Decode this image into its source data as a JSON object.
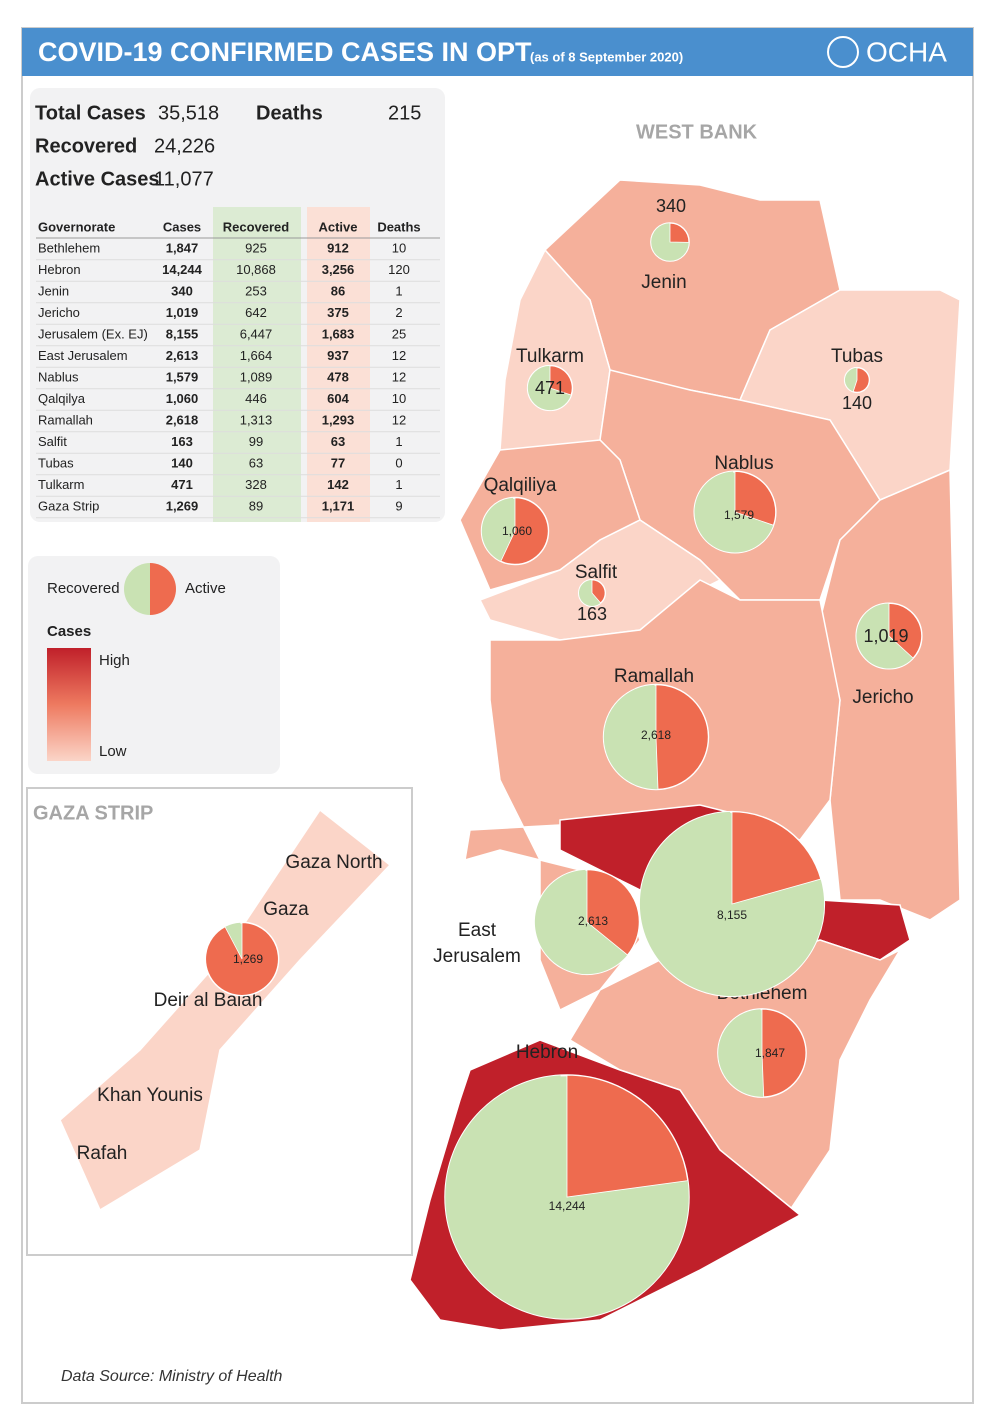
{
  "header": {
    "title": "COVID-19 CONFIRMED CASES IN OPT",
    "subtitle": "(as of 8 September 2020)",
    "logo": "OCHA"
  },
  "summary": [
    {
      "label": "Total Cases",
      "value": "35,518"
    },
    {
      "label": "Deaths",
      "value": "215"
    },
    {
      "label": "Recovered",
      "value": "24,226"
    },
    {
      "label": "Active Cases",
      "value": "11,077"
    }
  ],
  "table": {
    "columns": [
      "Governorate",
      "Cases",
      "Recovered",
      "Active",
      "Deaths"
    ],
    "rows": [
      [
        "Bethlehem",
        "1,847",
        "925",
        "912",
        "10"
      ],
      [
        "Hebron",
        "14,244",
        "10,868",
        "3,256",
        "120"
      ],
      [
        "Jenin",
        "340",
        "253",
        "86",
        "1"
      ],
      [
        "Jericho",
        "1,019",
        "642",
        "375",
        "2"
      ],
      [
        "Jerusalem (Ex. EJ)",
        "8,155",
        "6,447",
        "1,683",
        "25"
      ],
      [
        "East Jerusalem",
        "2,613",
        "1,664",
        "937",
        "12"
      ],
      [
        "Nablus",
        "1,579",
        "1,089",
        "478",
        "12"
      ],
      [
        "Qalqilya",
        "1,060",
        "446",
        "604",
        "10"
      ],
      [
        "Ramallah",
        "2,618",
        "1,313",
        "1,293",
        "12"
      ],
      [
        "Salfit",
        "163",
        "99",
        "63",
        "1"
      ],
      [
        "Tubas",
        "140",
        "63",
        "77",
        "0"
      ],
      [
        "Tulkarm",
        "471",
        "328",
        "142",
        "1"
      ],
      [
        "Gaza Strip",
        "1,269",
        "89",
        "1,171",
        "9"
      ]
    ]
  },
  "legend": {
    "recovered": "Recovered",
    "active": "Active",
    "cases_title": "Cases",
    "high": "High",
    "low": "Low"
  },
  "west_bank_label": "WEST BANK",
  "gaza_label": "GAZA STRIP",
  "place_labels": [
    "Jenin",
    "Tulkarm",
    "Tubas",
    "Nablus",
    "Qalqiliya",
    "Salfit",
    "Jericho",
    "Ramallah",
    "East",
    "Jerusalem",
    "Bethlehem",
    "Hebron",
    "Gaza North",
    "Gaza",
    "Deir al Balah",
    "Khan Younis",
    "Rafah"
  ],
  "pies": [
    {
      "cases": 340,
      "recovered": 253,
      "active": 86,
      "label": "340"
    },
    {
      "cases": 471,
      "recovered": 328,
      "active": 142,
      "label": "471"
    },
    {
      "cases": 140,
      "recovered": 63,
      "active": 77,
      "label": "140"
    },
    {
      "cases": 1579,
      "recovered": 1089,
      "active": 478,
      "label": "1,579"
    },
    {
      "cases": 1060,
      "recovered": 446,
      "active": 604,
      "label": "1,060"
    },
    {
      "cases": 163,
      "recovered": 99,
      "active": 63,
      "label": "163"
    },
    {
      "cases": 1019,
      "recovered": 642,
      "active": 375,
      "label": "1,019"
    },
    {
      "cases": 2618,
      "recovered": 1313,
      "active": 1293,
      "label": "2,618"
    },
    {
      "cases": 2613,
      "recovered": 1664,
      "active": 937,
      "label": "2,613"
    },
    {
      "cases": 8155,
      "recovered": 6447,
      "active": 1683,
      "label": "8,155"
    },
    {
      "cases": 1847,
      "recovered": 925,
      "active": 912,
      "label": "1,847"
    },
    {
      "cases": 14244,
      "recovered": 10868,
      "active": 3256,
      "label": "14,244"
    },
    {
      "cases": 1269,
      "recovered": 89,
      "active": 1171,
      "label": "1,269"
    }
  ],
  "source": "Data Source: Ministry of Health"
}
